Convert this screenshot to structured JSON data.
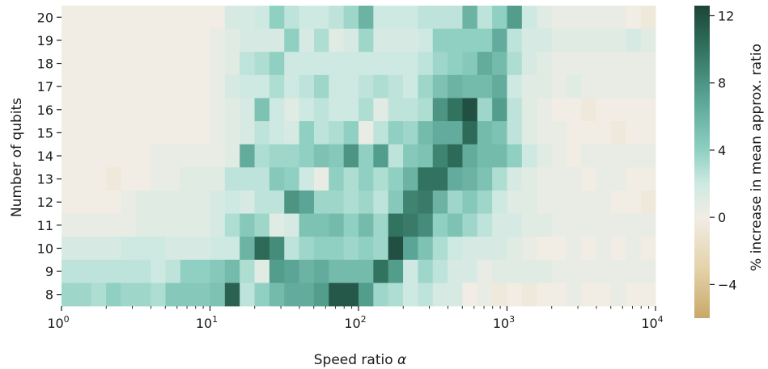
{
  "chart_data": {
    "type": "heatmap",
    "title": "",
    "xlabel": "Speed ratio α",
    "ylabel": "Number of qubits",
    "colorbar_label": "% increase in mean approx. ratio",
    "x_scale": "log",
    "xlim": [
      1,
      10000
    ],
    "x_ticks": [
      1,
      10,
      100,
      1000,
      10000
    ],
    "x_tick_labels": [
      {
        "base": "10",
        "exp": "0"
      },
      {
        "base": "10",
        "exp": "1"
      },
      {
        "base": "10",
        "exp": "2"
      },
      {
        "base": "10",
        "exp": "3"
      },
      {
        "base": "10",
        "exp": "4"
      }
    ],
    "y_categories": [
      "20",
      "19",
      "18",
      "17",
      "16",
      "15",
      "14",
      "13",
      "12",
      "11",
      "10",
      "9",
      "8"
    ],
    "colorbar_range": [
      -6,
      12.6
    ],
    "colorbar_ticks": [
      {
        "value": 12,
        "label": "12"
      },
      {
        "value": 8,
        "label": "8"
      },
      {
        "value": 4,
        "label": "4"
      },
      {
        "value": 0,
        "label": "0"
      },
      {
        "value": -4,
        "label": "−4"
      }
    ],
    "colormap": [
      "#c9a868",
      "#e4d3ac",
      "#f1ede4",
      "#cde9e2",
      "#8fd0c2",
      "#5aa595",
      "#32735f",
      "#1c4438"
    ],
    "values": [
      [
        0.0,
        0.0,
        0.0,
        0.0,
        0.0,
        0.0,
        0.0,
        0.0,
        0.0,
        0.0,
        0.0,
        1.5,
        1.5,
        2.0,
        4.0,
        2.5,
        2.0,
        2.0,
        2.5,
        3.5,
        6.0,
        2.0,
        2.0,
        2.0,
        2.5,
        2.5,
        2.5,
        6.0,
        2.5,
        4.0,
        7.5,
        2.0,
        1.0,
        0.5,
        0.5,
        0.5,
        0.5,
        0.5,
        0.0,
        -0.5
      ],
      [
        0.0,
        0.0,
        0.0,
        0.0,
        0.0,
        0.0,
        0.0,
        0.0,
        0.0,
        0.0,
        0.5,
        1.0,
        1.5,
        1.5,
        1.5,
        4.0,
        1.5,
        3.0,
        1.0,
        1.5,
        3.5,
        1.5,
        1.5,
        1.5,
        2.0,
        4.0,
        4.0,
        4.0,
        4.0,
        6.5,
        2.5,
        1.5,
        1.5,
        1.0,
        1.0,
        1.0,
        1.0,
        1.0,
        1.5,
        1.0
      ],
      [
        0.0,
        0.0,
        0.0,
        0.0,
        0.0,
        0.0,
        0.0,
        0.0,
        0.0,
        0.0,
        0.5,
        1.0,
        2.5,
        3.0,
        4.0,
        2.0,
        2.0,
        2.0,
        2.0,
        2.0,
        2.0,
        2.0,
        2.0,
        2.0,
        2.5,
        3.5,
        4.0,
        4.5,
        6.5,
        5.5,
        3.0,
        1.5,
        1.0,
        0.5,
        0.5,
        0.5,
        0.5,
        0.5,
        0.5,
        0.5
      ],
      [
        0.0,
        0.0,
        0.0,
        0.0,
        0.0,
        0.0,
        0.0,
        0.0,
        0.0,
        0.0,
        0.5,
        1.5,
        2.0,
        2.0,
        3.0,
        2.0,
        2.5,
        3.5,
        2.0,
        2.0,
        2.5,
        3.0,
        2.5,
        2.0,
        3.5,
        5.0,
        6.0,
        5.5,
        5.5,
        6.5,
        2.0,
        1.0,
        1.0,
        0.5,
        1.0,
        0.5,
        0.5,
        0.5,
        0.5,
        0.5
      ],
      [
        0.0,
        0.0,
        0.0,
        0.0,
        0.0,
        0.0,
        0.0,
        0.0,
        0.0,
        0.0,
        0.5,
        1.0,
        1.5,
        5.0,
        2.0,
        1.0,
        2.0,
        2.5,
        2.0,
        2.0,
        3.0,
        1.0,
        2.5,
        2.5,
        3.0,
        8.0,
        10.0,
        12.0,
        3.5,
        7.5,
        2.5,
        1.0,
        0.5,
        0.0,
        0.0,
        -0.5,
        0.0,
        0.0,
        0.0,
        0.0
      ],
      [
        0.0,
        0.0,
        0.0,
        0.0,
        0.0,
        0.0,
        0.0,
        0.0,
        0.0,
        0.0,
        0.5,
        1.0,
        1.5,
        2.5,
        2.0,
        1.5,
        4.0,
        2.5,
        3.0,
        4.0,
        0.5,
        2.5,
        4.0,
        3.5,
        5.5,
        6.5,
        6.5,
        10.5,
        5.5,
        5.0,
        2.5,
        1.0,
        0.5,
        0.5,
        0.0,
        0.0,
        0.0,
        -0.5,
        0.0,
        0.0
      ],
      [
        0.0,
        0.0,
        0.0,
        0.0,
        0.0,
        0.0,
        0.5,
        0.5,
        0.5,
        0.5,
        0.5,
        1.0,
        6.5,
        3.0,
        3.5,
        3.5,
        4.0,
        5.0,
        4.5,
        8.0,
        4.0,
        7.5,
        2.5,
        4.5,
        5.0,
        9.0,
        10.5,
        6.5,
        5.5,
        5.5,
        4.0,
        2.0,
        1.0,
        0.5,
        0.0,
        0.5,
        0.5,
        0.5,
        0.5,
        0.5
      ],
      [
        0.0,
        0.0,
        0.0,
        -0.5,
        0.0,
        0.0,
        0.5,
        0.5,
        1.0,
        1.0,
        1.0,
        2.5,
        2.5,
        2.5,
        4.5,
        4.0,
        2.0,
        0.5,
        4.0,
        3.0,
        4.0,
        3.0,
        4.0,
        6.0,
        10.0,
        10.0,
        6.5,
        6.0,
        5.0,
        3.0,
        1.5,
        1.0,
        0.5,
        0.5,
        0.5,
        0.0,
        0.5,
        0.5,
        0.0,
        0.0
      ],
      [
        0.0,
        0.0,
        0.0,
        0.0,
        0.5,
        1.0,
        1.0,
        1.0,
        1.0,
        1.0,
        1.5,
        2.0,
        1.5,
        2.5,
        2.5,
        8.0,
        7.0,
        3.5,
        3.5,
        3.0,
        3.5,
        2.5,
        4.5,
        9.0,
        9.5,
        6.0,
        3.5,
        4.5,
        3.5,
        2.0,
        1.0,
        1.0,
        0.5,
        0.5,
        0.5,
        0.5,
        0.5,
        0.0,
        0.0,
        -0.5
      ],
      [
        0.5,
        0.5,
        0.5,
        0.5,
        0.5,
        1.0,
        1.0,
        1.0,
        1.0,
        1.0,
        1.5,
        3.0,
        4.5,
        3.5,
        1.0,
        1.5,
        5.0,
        5.0,
        5.5,
        4.0,
        5.5,
        3.5,
        10.0,
        9.5,
        8.5,
        4.0,
        5.0,
        3.5,
        2.5,
        1.5,
        1.5,
        1.0,
        1.0,
        0.5,
        0.5,
        0.5,
        0.5,
        0.5,
        0.5,
        0.5
      ],
      [
        1.5,
        1.5,
        1.5,
        1.5,
        2.0,
        2.0,
        2.0,
        1.5,
        1.5,
        1.5,
        2.0,
        2.0,
        6.0,
        10.5,
        8.5,
        2.5,
        3.5,
        4.0,
        4.0,
        3.5,
        4.0,
        3.5,
        12.0,
        7.0,
        5.0,
        3.0,
        2.0,
        1.5,
        1.5,
        1.5,
        1.0,
        0.5,
        0.0,
        0.0,
        0.5,
        0.0,
        0.5,
        0.0,
        0.5,
        0.0
      ],
      [
        2.5,
        2.5,
        2.5,
        2.5,
        2.5,
        2.5,
        2.0,
        2.5,
        4.0,
        4.0,
        4.5,
        5.5,
        3.0,
        1.0,
        7.5,
        7.0,
        6.0,
        6.5,
        5.5,
        5.5,
        5.5,
        10.0,
        7.5,
        2.0,
        3.5,
        2.5,
        1.5,
        1.5,
        0.5,
        1.0,
        1.0,
        1.0,
        1.0,
        0.5,
        0.5,
        0.5,
        0.5,
        0.5,
        0.5,
        0.5
      ],
      [
        3.5,
        3.5,
        3.0,
        4.0,
        3.5,
        3.5,
        3.0,
        4.5,
        4.5,
        4.5,
        5.0,
        11.0,
        2.5,
        4.0,
        5.5,
        6.5,
        6.5,
        7.5,
        11.5,
        11.5,
        7.5,
        3.5,
        3.0,
        2.0,
        2.5,
        1.5,
        1.5,
        0.0,
        0.5,
        -0.5,
        0.0,
        -0.5,
        0.0,
        0.0,
        0.5,
        0.0,
        0.0,
        0.5,
        0.0,
        0.0
      ]
    ]
  }
}
